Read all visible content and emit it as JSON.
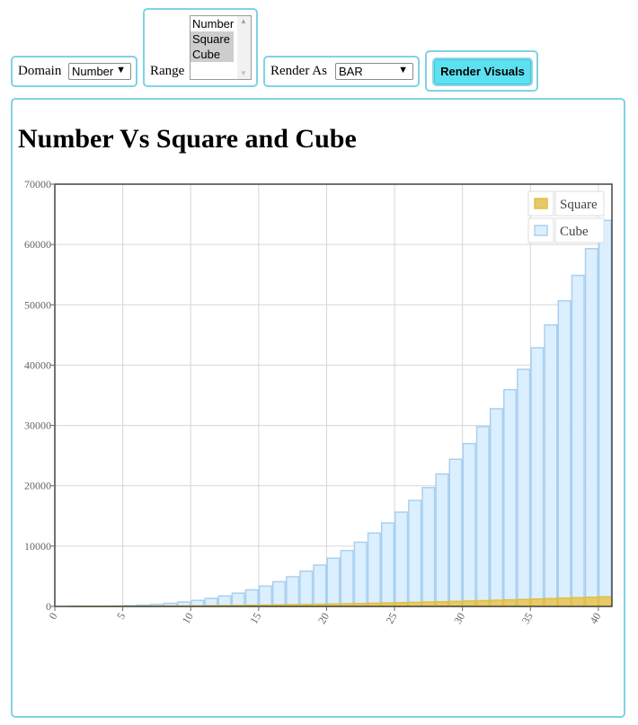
{
  "controls": {
    "domain_label": "Domain",
    "domain_value": "Number",
    "range_label": "Range",
    "range_options": [
      {
        "label": "Number",
        "selected": false
      },
      {
        "label": "Square",
        "selected": true
      },
      {
        "label": "Cube",
        "selected": true
      }
    ],
    "render_label": "Render As",
    "render_value": "BAR",
    "render_button": "Render Visuals"
  },
  "chart_title": "Number Vs Square and Cube",
  "colors": {
    "border_accent": "#7fd3e3",
    "button_bg": "#5ce1f0",
    "square_fill": "#e8c96a",
    "square_stroke": "#e0c040",
    "cube_fill": "#dcefff",
    "cube_stroke": "#a8d0f0"
  },
  "chart_data": {
    "type": "bar",
    "title": "Number Vs Square and Cube",
    "x": [
      0,
      1,
      2,
      3,
      4,
      5,
      6,
      7,
      8,
      9,
      10,
      11,
      12,
      13,
      14,
      15,
      16,
      17,
      18,
      19,
      20,
      21,
      22,
      23,
      24,
      25,
      26,
      27,
      28,
      29,
      30,
      31,
      32,
      33,
      34,
      35,
      36,
      37,
      38,
      39,
      40
    ],
    "series": [
      {
        "name": "Square",
        "values": [
          0,
          1,
          4,
          9,
          16,
          25,
          36,
          49,
          64,
          81,
          100,
          121,
          144,
          169,
          196,
          225,
          256,
          289,
          324,
          361,
          400,
          441,
          484,
          529,
          576,
          625,
          676,
          729,
          784,
          841,
          900,
          961,
          1024,
          1089,
          1156,
          1225,
          1296,
          1369,
          1444,
          1521,
          1600
        ]
      },
      {
        "name": "Cube",
        "values": [
          0,
          1,
          8,
          27,
          64,
          125,
          216,
          343,
          512,
          729,
          1000,
          1331,
          1728,
          2197,
          2744,
          3375,
          4096,
          4913,
          5832,
          6859,
          8000,
          9261,
          10648,
          12167,
          13824,
          15625,
          17576,
          19683,
          21952,
          24389,
          27000,
          29791,
          32768,
          35937,
          39304,
          42875,
          46656,
          50653,
          54872,
          59319,
          64000
        ]
      }
    ],
    "ylim": [
      0,
      70000
    ],
    "yticks": [
      "0",
      "10000",
      "20000",
      "30000",
      "40000",
      "50000",
      "60000",
      "70000"
    ],
    "xticks": [
      "0",
      "5",
      "10",
      "15",
      "20",
      "25",
      "30",
      "35",
      "40"
    ],
    "grid": true,
    "legend_position": "top-right"
  }
}
